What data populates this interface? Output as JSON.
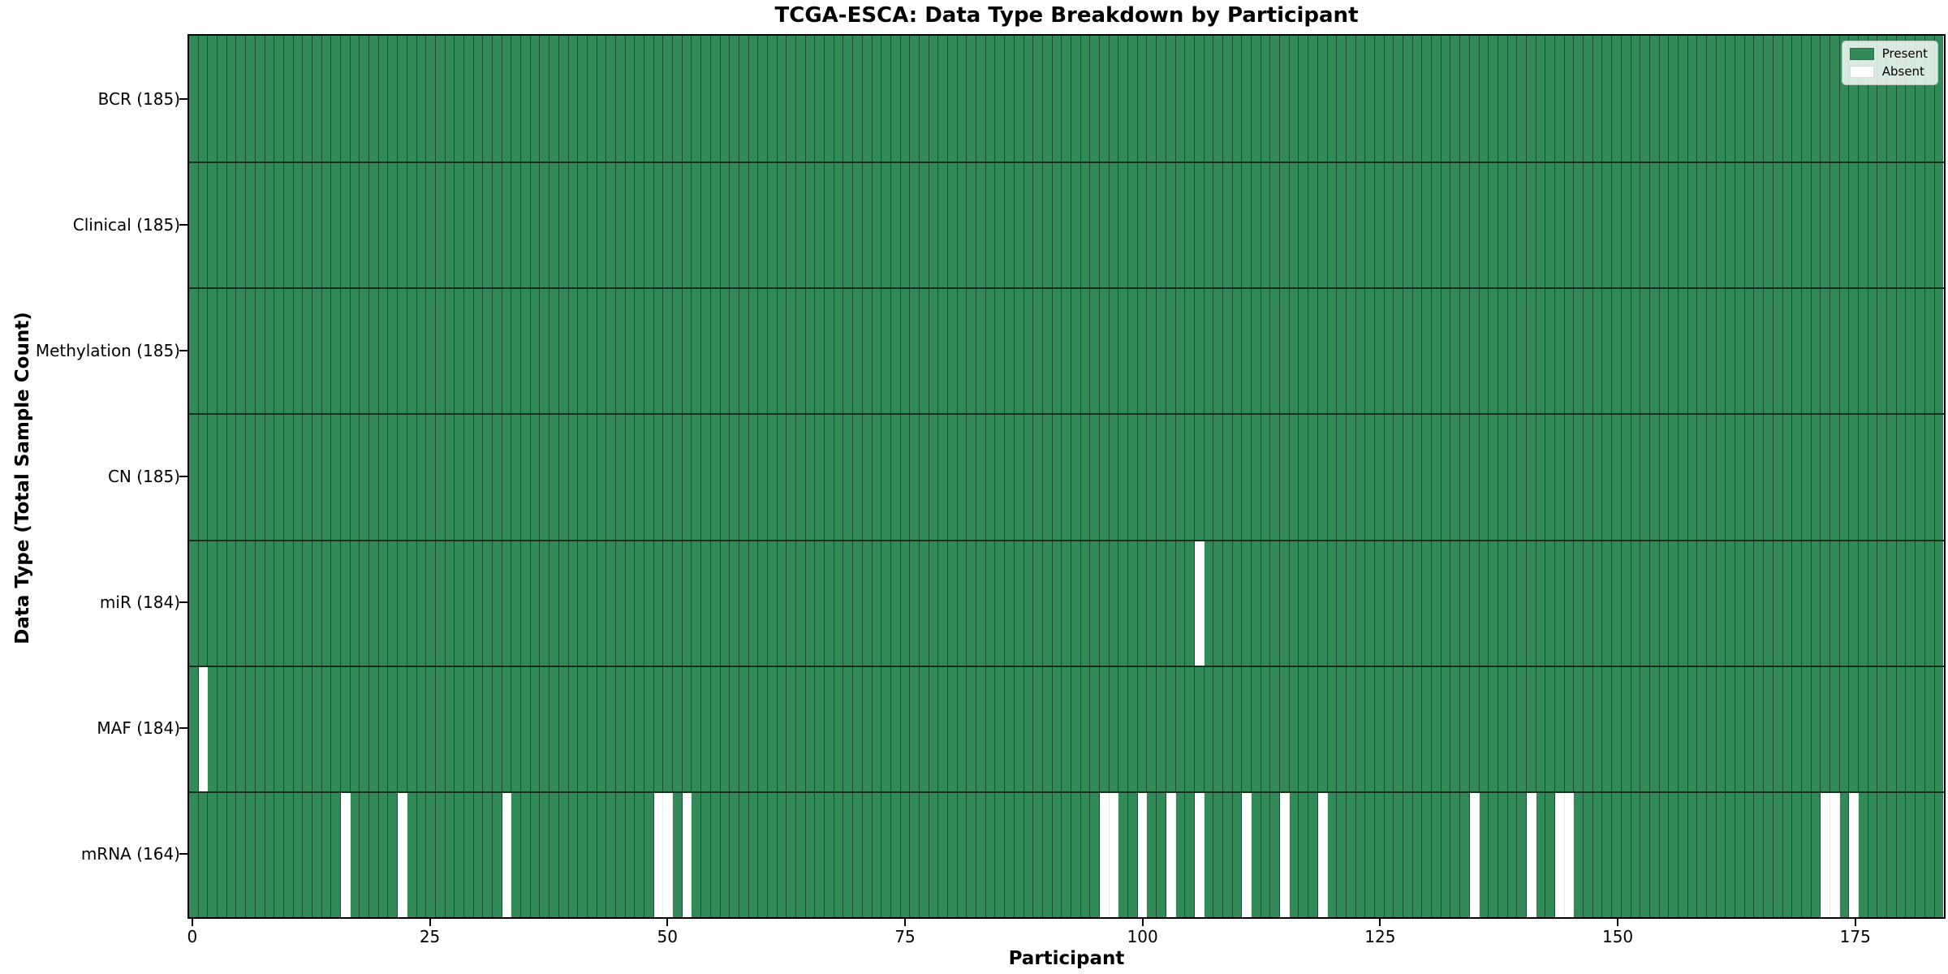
{
  "title": "TCGA-ESCA: Data Type Breakdown by Participant",
  "axes": {
    "x_label": "Participant",
    "y_label": "Data Type (Total Sample Count)",
    "x_ticks": [
      0,
      25,
      50,
      75,
      100,
      125,
      150,
      175
    ]
  },
  "legend": {
    "items": [
      {
        "label": "Present",
        "color": "#318a58"
      },
      {
        "label": "Absent",
        "color": "#ffffff"
      }
    ]
  },
  "colors": {
    "present": "#318a58",
    "absent": "#ffffff",
    "cell_edge": "rgba(8,28,18,0.55)",
    "row_separator": "#16301f",
    "spine": "#000000"
  },
  "chart_data": {
    "type": "heatmap",
    "title": "TCGA-ESCA: Data Type Breakdown by Participant",
    "xlabel": "Participant",
    "ylabel": "Data Type (Total Sample Count)",
    "n_participants": 185,
    "x_range": [
      0,
      184
    ],
    "x_tick_values": [
      0,
      25,
      50,
      75,
      100,
      125,
      150,
      175
    ],
    "legend_position": "upper right",
    "values_meaning": {
      "present": 1,
      "absent": 0
    },
    "rows": [
      {
        "label": "BCR (185)",
        "data_type": "BCR",
        "present_count": 185,
        "absent_participants": []
      },
      {
        "label": "Clinical (185)",
        "data_type": "Clinical",
        "present_count": 185,
        "absent_participants": []
      },
      {
        "label": "Methylation (185)",
        "data_type": "Methylation",
        "present_count": 185,
        "absent_participants": []
      },
      {
        "label": "CN (185)",
        "data_type": "CN",
        "present_count": 185,
        "absent_participants": []
      },
      {
        "label": "miR (184)",
        "data_type": "miR",
        "present_count": 184,
        "absent_participants": [
          106
        ]
      },
      {
        "label": "MAF (184)",
        "data_type": "MAF",
        "present_count": 184,
        "absent_participants": [
          1
        ]
      },
      {
        "label": "mRNA (164)",
        "data_type": "mRNA",
        "present_count": 164,
        "absent_participants": [
          16,
          22,
          33,
          49,
          50,
          52,
          96,
          97,
          100,
          103,
          106,
          111,
          115,
          119,
          135,
          141,
          144,
          145,
          172,
          173,
          175
        ]
      }
    ]
  }
}
